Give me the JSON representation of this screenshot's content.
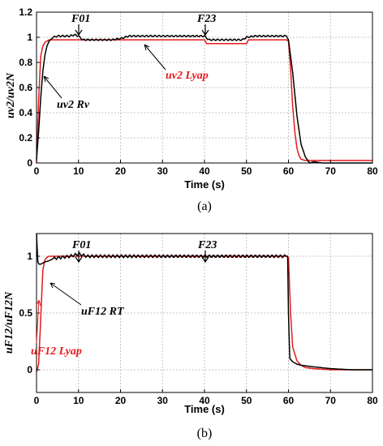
{
  "chart_data": [
    {
      "type": "line",
      "caption": "(a)",
      "xlabel": "Time (s)",
      "ylabel": "uv2/uv2N",
      "xlim": [
        0,
        80
      ],
      "ylim": [
        0,
        1.2
      ],
      "xticks": [
        "0",
        "10",
        "20",
        "30",
        "40",
        "50",
        "60",
        "70",
        "80"
      ],
      "yticks": [
        "0",
        "0.2",
        "0.4",
        "0.6",
        "0.8",
        "1",
        "1.2"
      ],
      "grid": true,
      "series": [
        {
          "name": "uv2 Rv",
          "color": "#000000",
          "x": [
            0,
            0.5,
            1,
            1.5,
            2,
            2.5,
            3,
            4,
            5,
            6,
            8,
            9,
            10,
            11,
            12,
            14,
            16,
            18,
            20,
            22,
            24,
            26,
            28,
            30,
            32,
            34,
            36,
            38,
            40,
            41,
            43,
            45,
            47,
            49,
            50,
            52,
            54,
            56,
            58,
            59.5,
            60,
            61,
            62,
            63,
            64,
            65,
            66,
            68,
            70,
            75,
            80
          ],
          "y": [
            0.03,
            0.25,
            0.52,
            0.73,
            0.86,
            0.93,
            0.97,
            1.0,
            1.01,
            1.01,
            1.01,
            1.02,
            1.01,
            0.98,
            0.98,
            0.98,
            0.98,
            0.98,
            0.99,
            1.01,
            1.01,
            1.01,
            1.01,
            1.01,
            1.01,
            1.01,
            1.01,
            1.01,
            1.01,
            0.98,
            0.98,
            0.98,
            0.98,
            0.98,
            1.0,
            1.01,
            1.01,
            1.01,
            1.01,
            1.01,
            0.98,
            0.72,
            0.38,
            0.15,
            0.05,
            0.0,
            0.01,
            0.0,
            0.0,
            0.0,
            0.0
          ]
        },
        {
          "name": "uv2 Lyap",
          "color": "#e41a1c",
          "x": [
            0,
            0.5,
            1,
            1.5,
            2,
            2.5,
            3,
            4,
            6,
            10,
            20,
            20.5,
            40,
            40.5,
            50,
            50.5,
            59.5,
            60,
            60.5,
            61,
            61.5,
            62,
            62.5,
            63,
            64,
            65,
            70,
            80
          ],
          "y": [
            0.0,
            0.5,
            0.85,
            0.93,
            0.96,
            0.97,
            0.98,
            0.98,
            0.98,
            0.98,
            0.98,
            0.98,
            0.98,
            0.95,
            0.95,
            0.98,
            0.98,
            0.97,
            0.75,
            0.45,
            0.25,
            0.12,
            0.06,
            0.03,
            0.02,
            0.02,
            0.02,
            0.02
          ]
        }
      ],
      "annotations": [
        {
          "label": "F01",
          "color": "#000000"
        },
        {
          "label": "F23",
          "color": "#000000"
        },
        {
          "label": "uv2 Rv",
          "color": "#000000"
        },
        {
          "label": "uv2 Lyap",
          "color": "#e41a1c"
        }
      ]
    },
    {
      "type": "line",
      "caption": "(b)",
      "xlabel": "Time (s)",
      "ylabel": "uF12/uF12N",
      "xlim": [
        0,
        80
      ],
      "ylim": [
        -0.2,
        1.2
      ],
      "xticks": [
        "0",
        "10",
        "20",
        "30",
        "40",
        "50",
        "60",
        "70",
        "80"
      ],
      "yticks": [
        "0",
        "0.5",
        "1"
      ],
      "grid": true,
      "series": [
        {
          "name": "uF12 RT",
          "color": "#000000",
          "x": [
            0,
            0.3,
            0.6,
            1,
            2,
            3,
            4,
            6,
            8,
            10,
            12,
            15,
            20,
            25,
            30,
            35,
            40,
            45,
            50,
            55,
            59.8,
            60,
            60.3,
            61,
            62,
            63,
            65,
            70,
            75,
            80
          ],
          "y": [
            1.2,
            0.95,
            0.93,
            0.93,
            0.95,
            0.96,
            0.98,
            0.99,
            1.0,
            1.02,
            1.0,
            1.0,
            1.0,
            1.0,
            1.0,
            1.0,
            1.0,
            1.0,
            1.0,
            1.0,
            1.0,
            0.5,
            0.1,
            0.07,
            0.05,
            0.04,
            0.03,
            0.01,
            0.0,
            0.0
          ]
        },
        {
          "name": "uF12 Lyap",
          "color": "#e41a1c",
          "x": [
            0,
            0.5,
            1,
            1.5,
            2,
            2.5,
            3,
            4,
            6,
            10,
            20,
            30,
            40,
            50,
            59.5,
            60,
            60.5,
            61,
            62,
            63,
            64,
            66,
            70,
            80
          ],
          "y": [
            -0.02,
            0.05,
            0.45,
            0.88,
            0.97,
            0.99,
            1.0,
            1.0,
            1.0,
            1.0,
            1.0,
            1.0,
            1.0,
            1.0,
            1.0,
            0.99,
            0.5,
            0.2,
            0.08,
            0.04,
            0.02,
            0.01,
            0.0,
            0.0
          ]
        }
      ],
      "annotations": [
        {
          "label": "F01",
          "color": "#000000"
        },
        {
          "label": "F23",
          "color": "#000000"
        },
        {
          "label": "uF12 RT",
          "color": "#000000"
        },
        {
          "label": "uF12 Lyap",
          "color": "#e41a1c"
        }
      ]
    }
  ]
}
